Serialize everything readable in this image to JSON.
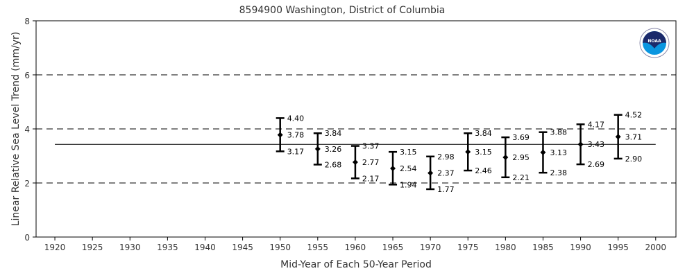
{
  "chart_data": {
    "type": "errorbar",
    "title": "8594900 Washington, District of Columbia",
    "xlabel": "Mid-Year of Each 50-Year Period",
    "ylabel": "Linear Relative Sea Level Trend (mm/yr)",
    "xlim": [
      1917.5,
      2002.7
    ],
    "ylim": [
      0,
      8
    ],
    "xticks": [
      1920,
      1925,
      1930,
      1935,
      1940,
      1945,
      1950,
      1955,
      1960,
      1965,
      1970,
      1975,
      1980,
      1985,
      1990,
      1995,
      2000
    ],
    "yticks": [
      0,
      2,
      4,
      6,
      8
    ],
    "dashed_gridlines": [
      2,
      4,
      6
    ],
    "reference_line": {
      "value": 3.43,
      "x_range": [
        1920,
        2000
      ]
    },
    "points": [
      {
        "x": 1950,
        "y": 3.78,
        "upper": 4.4,
        "lower": 3.17
      },
      {
        "x": 1955,
        "y": 3.26,
        "upper": 3.84,
        "lower": 2.68
      },
      {
        "x": 1960,
        "y": 2.77,
        "upper": 3.37,
        "lower": 2.17
      },
      {
        "x": 1965,
        "y": 2.54,
        "upper": 3.15,
        "lower": 1.94
      },
      {
        "x": 1970,
        "y": 2.37,
        "upper": 2.98,
        "lower": 1.77
      },
      {
        "x": 1975,
        "y": 3.15,
        "upper": 3.84,
        "lower": 2.46
      },
      {
        "x": 1980,
        "y": 2.95,
        "upper": 3.69,
        "lower": 2.21
      },
      {
        "x": 1985,
        "y": 3.13,
        "upper": 3.88,
        "lower": 2.38
      },
      {
        "x": 1990,
        "y": 3.43,
        "upper": 4.17,
        "lower": 2.69
      },
      {
        "x": 1995,
        "y": 3.71,
        "upper": 4.52,
        "lower": 2.9
      }
    ],
    "logo": "NOAA"
  }
}
